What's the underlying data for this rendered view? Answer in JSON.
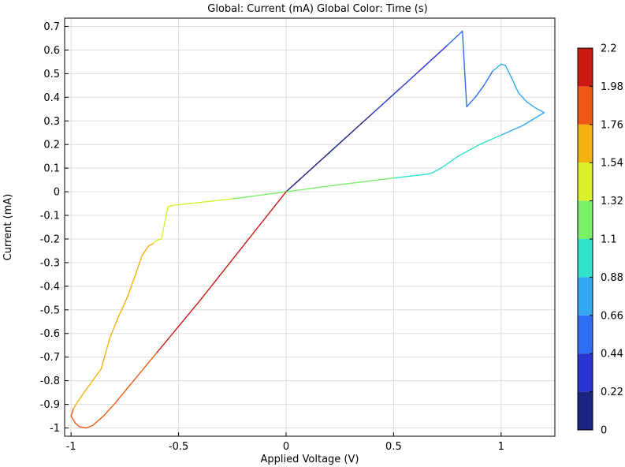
{
  "chart_data": {
    "type": "line",
    "title": "Global: Current (mA)    Global Color: Time (s)",
    "xlabel": "Applied Voltage (V)",
    "ylabel": "Current (mA)",
    "xlim": [
      -1.03,
      1.25
    ],
    "ylim": [
      -1.035,
      0.735
    ],
    "x_ticks": [
      -1,
      -0.5,
      0,
      0.5,
      1
    ],
    "x_tick_labels": [
      "-1",
      "-0.5",
      "0",
      "0.5",
      "1"
    ],
    "y_ticks": [
      0.7,
      0.6,
      0.5,
      0.4,
      0.3,
      0.2,
      0.1,
      0,
      -0.1,
      -0.2,
      -0.3,
      -0.4,
      -0.5,
      -0.6,
      -0.7,
      -0.8,
      -0.9,
      -1
    ],
    "y_tick_labels": [
      "0.7",
      "0.6",
      "0.5",
      "0.4",
      "0.3",
      "0.2",
      "0.1",
      "0",
      "-0.1",
      "-0.2",
      "-0.3",
      "-0.4",
      "-0.5",
      "-0.6",
      "-0.7",
      "-0.8",
      "-0.9",
      "-1"
    ],
    "grid": true,
    "series": [
      {
        "x": [
          0,
          0.2,
          0.4,
          0.6,
          0.75,
          0.82,
          0.84,
          0.88,
          0.92,
          0.96,
          1.0,
          1.02,
          1.05,
          1.08,
          1.12,
          1.16,
          1.2
        ],
        "y": [
          0,
          0.165,
          0.33,
          0.495,
          0.62,
          0.68,
          0.36,
          0.4,
          0.45,
          0.51,
          0.54,
          0.535,
          0.48,
          0.42,
          0.38,
          0.355,
          0.335
        ],
        "t": [
          0,
          0.13,
          0.26,
          0.39,
          0.49,
          0.53,
          0.55,
          0.58,
          0.62,
          0.65,
          0.68,
          0.7,
          0.72,
          0.74,
          0.76,
          0.78,
          0.8
        ]
      },
      {
        "x": [
          1.2,
          1.1,
          1.0,
          0.9,
          0.8,
          0.72,
          0.68,
          0.66,
          0.5,
          0.25,
          0,
          -0.25,
          -0.53,
          -0.55
        ],
        "y": [
          0.335,
          0.28,
          0.24,
          0.2,
          0.15,
          0.1,
          0.08,
          0.075,
          0.058,
          0.03,
          0,
          -0.03,
          -0.058,
          -0.065
        ],
        "t": [
          0.8,
          0.83,
          0.87,
          0.9,
          0.93,
          0.96,
          0.98,
          0.99,
          1.05,
          1.15,
          1.27,
          1.36,
          1.47,
          1.48
        ]
      },
      {
        "x": [
          -0.55,
          -0.58,
          -0.6,
          -0.62,
          -0.64,
          -0.67,
          -0.7,
          -0.74,
          -0.78,
          -0.82,
          -0.86,
          -0.9,
          -0.94,
          -0.97,
          -0.99,
          -1.0
        ],
        "y": [
          -0.065,
          -0.2,
          -0.205,
          -0.22,
          -0.23,
          -0.27,
          -0.35,
          -0.45,
          -0.53,
          -0.62,
          -0.75,
          -0.8,
          -0.85,
          -0.89,
          -0.92,
          -0.95
        ],
        "t": [
          1.48,
          1.5,
          1.52,
          1.54,
          1.56,
          1.58,
          1.6,
          1.62,
          1.64,
          1.66,
          1.68,
          1.7,
          1.72,
          1.74,
          1.76,
          1.77
        ]
      },
      {
        "x": [
          -1.0,
          -0.98,
          -0.96,
          -0.93,
          -0.9,
          -0.85,
          -0.8,
          -0.6,
          -0.4,
          -0.2,
          0
        ],
        "y": [
          -0.95,
          -0.98,
          -0.995,
          -1.0,
          -0.99,
          -0.95,
          -0.9,
          -0.68,
          -0.46,
          -0.23,
          0
        ],
        "t": [
          1.77,
          1.79,
          1.81,
          1.83,
          1.85,
          1.88,
          1.92,
          2.0,
          2.07,
          2.14,
          2.2
        ]
      }
    ],
    "colorbar": {
      "label": "",
      "range": [
        0,
        2.2
      ],
      "tick_labels": [
        "2.2",
        "1.98",
        "1.76",
        "1.54",
        "1.32",
        "1.1",
        "0.88",
        "0.66",
        "0.44",
        "0.22",
        "0"
      ],
      "colors": [
        "#1a237e",
        "#2a33cf",
        "#2f6ef2",
        "#33a8f0",
        "#2fe2c9",
        "#7bee6a",
        "#d9f02a",
        "#f2b20f",
        "#ee5a16",
        "#c81a12"
      ]
    }
  }
}
